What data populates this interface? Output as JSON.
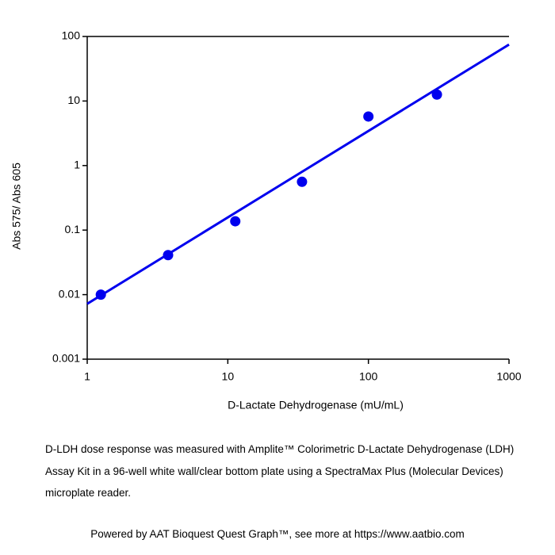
{
  "chart_data": {
    "type": "scatter",
    "x_label": "D-Lactate Dehydrogenase (mU/mL)",
    "y_label": "Abs 575/ Abs 605",
    "x": [
      1.25,
      3.76,
      11.3,
      33.7,
      100,
      307
    ],
    "values": [
      0.01,
      0.041,
      0.137,
      0.56,
      5.75,
      12.6
    ],
    "color": "#0000ee",
    "fit": {
      "x": [
        1,
        1000
      ],
      "y": [
        0.0072,
        75
      ]
    },
    "xscale": "log",
    "yscale": "log",
    "xlim": [
      1,
      1000
    ],
    "ylim": [
      0.001,
      100
    ],
    "xticks": [
      1,
      10,
      100,
      1000
    ],
    "yticks": [
      0.001,
      0.01,
      0.1,
      1,
      10,
      100
    ],
    "caption": "D-LDH dose response was measured with Amplite™ Colorimetric D-Lactate Dehydrogenase (LDH) Assay Kit in a 96-well white wall/clear bottom plate using a SpectraMax Plus (Molecular Devices) microplate reader.",
    "footer": "Powered by AAT Bioquest Quest Graph™, see more at https://www.aatbio.com"
  }
}
